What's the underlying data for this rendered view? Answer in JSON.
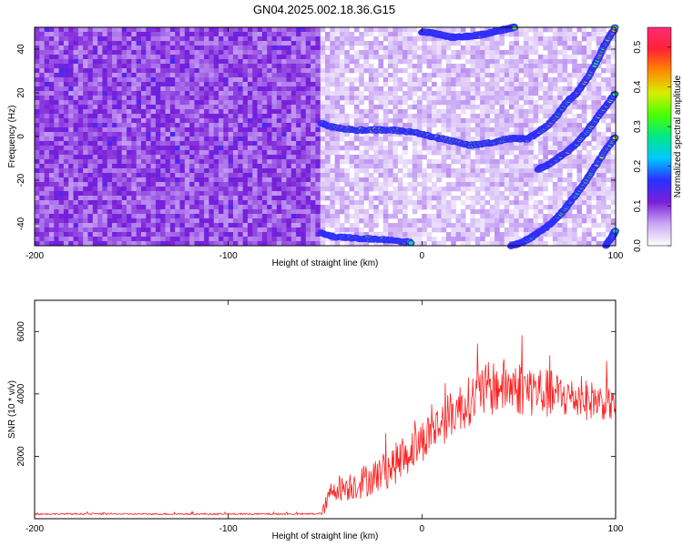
{
  "page": {
    "title": "GN04.2025.002.18.36.G15"
  },
  "chart_data": [
    {
      "type": "heatmap",
      "xlabel": "Height of straight line (km)",
      "ylabel": "Frequency (Hz)",
      "xlim": [
        -200,
        100
      ],
      "ylim": [
        -50,
        50
      ],
      "xticks": [
        "-200",
        "-100",
        "0",
        "100"
      ],
      "yticks": [
        "-40",
        "-20",
        "0",
        "20",
        "40"
      ],
      "noise_transition_x": -52,
      "colorbar": {
        "label": "Normalized spectral amplitude",
        "range": [
          0,
          0.55
        ],
        "ticks": [
          "0.0",
          "0.1",
          "0.2",
          "0.3",
          "0.4",
          "0.5"
        ],
        "colors": [
          "#ffffff",
          "#c9a7f5",
          "#7b1fd8",
          "#2a30ff",
          "#00c8ff",
          "#00e887",
          "#4cff00",
          "#d8ee00",
          "#ff8a00",
          "#ff2233",
          "#ff2a7a"
        ]
      },
      "ridges": [
        {
          "x": [
            0,
            5,
            10,
            15,
            20,
            25,
            30,
            35,
            40,
            45,
            48
          ],
          "y": [
            48,
            47.5,
            46.5,
            45.5,
            45.5,
            46,
            46.5,
            47.5,
            48.5,
            49.5,
            50
          ],
          "amp": 0.36
        },
        {
          "x": [
            -52,
            -45,
            -35,
            -25,
            -15,
            -5,
            5,
            15,
            25,
            35,
            45,
            50,
            55,
            60,
            65,
            70,
            75,
            80,
            85,
            90,
            95,
            100
          ],
          "y": [
            6,
            4,
            3,
            3,
            3,
            2,
            0,
            -2,
            -4,
            -3,
            -1,
            -1,
            -1,
            2,
            5,
            10,
            16,
            20,
            26,
            34,
            43,
            50
          ],
          "amp": 0.36
        },
        {
          "x": [
            60,
            65,
            70,
            75,
            80,
            85,
            90,
            95,
            100
          ],
          "y": [
            -15,
            -13,
            -10,
            -7,
            -3,
            2,
            8,
            14,
            20
          ],
          "amp": 0.34
        },
        {
          "x": [
            -52,
            -45,
            -35,
            -25,
            -15,
            -5
          ],
          "y": [
            -44,
            -46,
            -46.5,
            -47,
            -47.5,
            -48.5
          ],
          "amp": 0.3
        },
        {
          "x": [
            46,
            50,
            55,
            60,
            65,
            70,
            75,
            80,
            85,
            90,
            95,
            100
          ],
          "y": [
            -50,
            -49,
            -47,
            -44,
            -41,
            -37,
            -32,
            -26,
            -20,
            -13,
            -6,
            0
          ],
          "amp": 0.34
        },
        {
          "x": [
            95,
            98,
            100
          ],
          "y": [
            -50,
            -46,
            -43
          ],
          "amp": 0.32
        }
      ]
    },
    {
      "type": "line",
      "xlabel": "Height of straight line (km)",
      "ylabel": "SNR (10 * v/v)",
      "xlim": [
        -200,
        100
      ],
      "ylim": [
        0,
        7000
      ],
      "xticks": [
        "-200",
        "-100",
        "0",
        "100"
      ],
      "yticks": [
        "2000",
        "4000",
        "6000"
      ],
      "series": [
        {
          "color": "#ff2020",
          "x": [
            -200,
            -175,
            -150,
            -125,
            -100,
            -80,
            -60,
            -52,
            -50,
            -47,
            -45,
            -40,
            -35,
            -30,
            -25,
            -20,
            -15,
            -10,
            -5,
            0,
            5,
            10,
            15,
            20,
            25,
            30,
            35,
            40,
            45,
            50,
            55,
            60,
            65,
            70,
            75,
            80,
            85,
            90,
            95,
            100
          ],
          "y": [
            150,
            155,
            150,
            150,
            150,
            150,
            150,
            160,
            400,
            850,
            1000,
            1000,
            1100,
            1200,
            1350,
            1500,
            1700,
            1950,
            2250,
            2500,
            2800,
            3050,
            3350,
            3600,
            3800,
            4000,
            4150,
            4250,
            4250,
            4200,
            4150,
            4100,
            4000,
            3950,
            3900,
            3850,
            3800,
            3800,
            3700,
            3600
          ],
          "noise": [
            25,
            25,
            25,
            25,
            25,
            25,
            25,
            40,
            250,
            350,
            400,
            450,
            500,
            550,
            550,
            600,
            650,
            700,
            700,
            700,
            700,
            750,
            750,
            800,
            800,
            850,
            900,
            900,
            900,
            900,
            900,
            850,
            800,
            750,
            700,
            650,
            650,
            600,
            550,
            500
          ]
        }
      ]
    }
  ]
}
